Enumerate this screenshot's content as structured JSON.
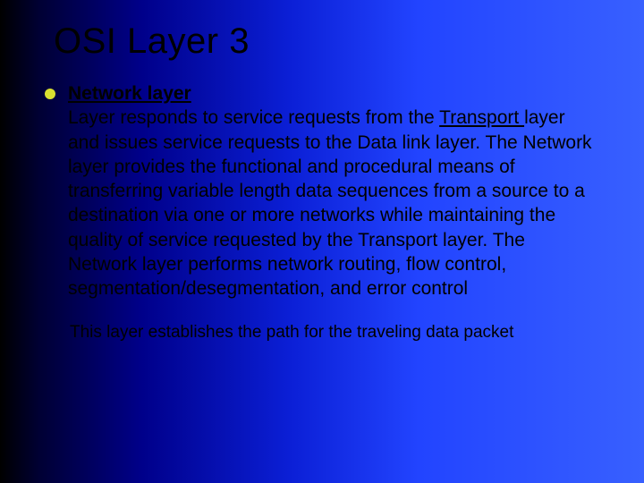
{
  "slide": {
    "background_gradient": [
      "#000000",
      "#000033",
      "#00008a",
      "#0b1fd6",
      "#2244ff",
      "#3860ff"
    ],
    "title": "OSI Layer 3",
    "title_fontsize": 40,
    "title_color": "#000000",
    "bullet_color": "#d9e030",
    "body_fontsize": 21,
    "body_color": "#000000",
    "network_layer_label": "Network layer",
    "body_pre": "Layer responds to service requests from the ",
    "transport_label": "Transport ",
    "body_post": "layer and issues service requests to the Data link layer. The Network layer provides the functional and procedural means of transferring variable length data sequences from a source to a destination via one or more networks while maintaining the quality of service requested by the Transport layer. The Network layer performs network routing, flow control, segmentation/desegmentation, and error control",
    "footer": "This layer establishes the path for the traveling data packet",
    "footer_fontsize": 19
  }
}
